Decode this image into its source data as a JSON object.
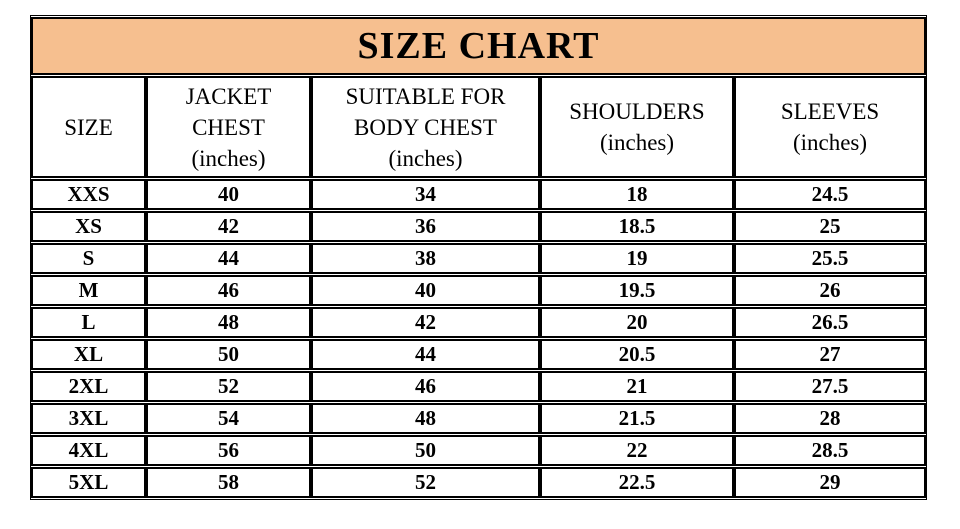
{
  "chart_data": {
    "type": "table",
    "title": "SIZE CHART",
    "columns": [
      "SIZE",
      "JACKET CHEST (inches)",
      "SUITABLE FOR BODY CHEST (inches)",
      "SHOULDERS (inches)",
      "SLEEVES (inches)"
    ],
    "rows": [
      [
        "XXS",
        "40",
        "34",
        "18",
        "24.5"
      ],
      [
        "XS",
        "42",
        "36",
        "18.5",
        "25"
      ],
      [
        "S",
        "44",
        "38",
        "19",
        "25.5"
      ],
      [
        "M",
        "46",
        "40",
        "19.5",
        "26"
      ],
      [
        "L",
        "48",
        "42",
        "20",
        "26.5"
      ],
      [
        "XL",
        "50",
        "44",
        "20.5",
        "27"
      ],
      [
        "2XL",
        "52",
        "46",
        "21",
        "27.5"
      ],
      [
        "3XL",
        "54",
        "48",
        "21.5",
        "28"
      ],
      [
        "4XL",
        "56",
        "50",
        "22",
        "28.5"
      ],
      [
        "5XL",
        "58",
        "52",
        "22.5",
        "29"
      ]
    ],
    "units": "inches",
    "layout_hints": {
      "title_position": "top-banner",
      "grid": "on"
    }
  },
  "display": {
    "title": "SIZE CHART",
    "column_labels": [
      "SIZE",
      "JACKET\nCHEST\n(inches)",
      "SUITABLE FOR\nBODY CHEST\n(inches)",
      "SHOULDERS\n(inches)",
      "SLEEVES\n(inches)"
    ]
  },
  "colors": {
    "title_background": "#F6BF8F",
    "border": "#000000",
    "text": "#000000",
    "page_background": "#FFFFFF"
  }
}
